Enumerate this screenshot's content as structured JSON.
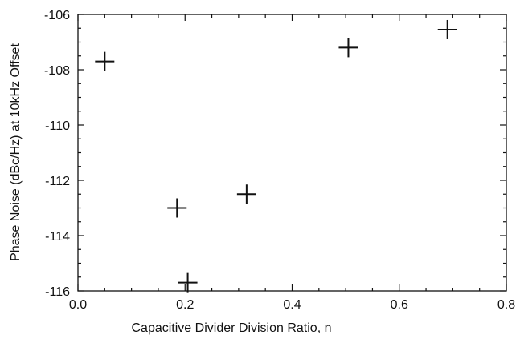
{
  "chart_data": {
    "type": "scatter",
    "title": "",
    "xlabel": "Capacitive Divider Division Ratio, n",
    "ylabel": "Phase Noise (dBc/Hz) at 10kHz Offset",
    "xlim": [
      0.0,
      0.8
    ],
    "ylim": [
      -116,
      -106
    ],
    "x_ticks": [
      0.0,
      0.2,
      0.4,
      0.6,
      0.8
    ],
    "x_tick_labels": [
      "0.0",
      "0.2",
      "0.4",
      "0.6",
      "0.8"
    ],
    "y_ticks": [
      -116,
      -114,
      -112,
      -110,
      -108,
      -106
    ],
    "y_tick_labels": [
      "-116",
      "-114",
      "-112",
      "-110",
      "-108",
      "-106"
    ],
    "marker": "plus",
    "grid": false,
    "legend": "none",
    "colors": {
      "axis": "#111111",
      "marker": "#111111"
    },
    "series": [
      {
        "x": [
          0.05,
          0.185,
          0.205,
          0.315,
          0.505,
          0.69
        ],
        "y": [
          -107.7,
          -113.0,
          -115.7,
          -112.5,
          -107.2,
          -106.55
        ]
      }
    ]
  }
}
